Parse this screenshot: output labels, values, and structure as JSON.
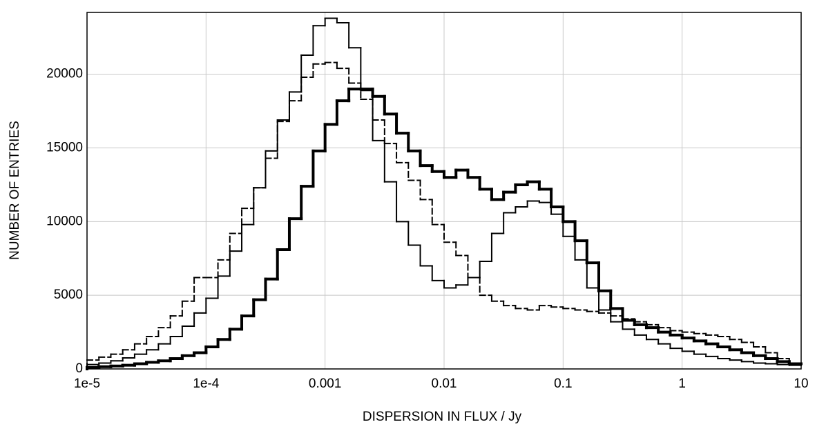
{
  "chart_data": {
    "type": "histogram",
    "xlabel": "DISPERSION IN FLUX / Jy",
    "ylabel": "NUMBER OF ENTRIES",
    "xscale": "log",
    "grid": true,
    "xlim": [
      1e-05,
      10
    ],
    "ylim": [
      0,
      24200
    ],
    "xticks": [
      {
        "value": 1e-05,
        "label": "1e-5"
      },
      {
        "value": 0.0001,
        "label": "1e-4"
      },
      0.001,
      0.01,
      0.1,
      1,
      10
    ],
    "yticks": [
      0,
      5000,
      10000,
      15000,
      20000
    ],
    "bins": [
      1e-05,
      1.259e-05,
      1.585e-05,
      1.995e-05,
      2.512e-05,
      3.162e-05,
      3.981e-05,
      5.012e-05,
      6.31e-05,
      7.943e-05,
      0.0001,
      0.0001259,
      0.0001585,
      0.0001995,
      0.0002512,
      0.0003162,
      0.0003981,
      0.0005012,
      0.000631,
      0.0007943,
      0.001,
      0.001259,
      0.001585,
      0.001995,
      0.002512,
      0.003162,
      0.003981,
      0.005012,
      0.00631,
      0.007943,
      0.01,
      0.01259,
      0.01585,
      0.01995,
      0.02512,
      0.03162,
      0.03981,
      0.05012,
      0.0631,
      0.07943,
      0.1,
      0.1259,
      0.1585,
      0.1995,
      0.2512,
      0.3162,
      0.3981,
      0.5012,
      0.631,
      0.7943,
      1,
      1.259,
      1.585,
      1.995,
      2.512,
      3.162,
      3.981,
      5.012,
      6.31,
      7.943,
      10
    ],
    "series": [
      {
        "color": "#000000",
        "width": 2,
        "dashed": false,
        "values": [
          300,
          400,
          550,
          750,
          1000,
          1300,
          1700,
          2200,
          2900,
          3800,
          4800,
          6300,
          8000,
          9800,
          12300,
          14800,
          16900,
          18800,
          21300,
          23300,
          23800,
          23500,
          21800,
          18900,
          15500,
          12700,
          10000,
          8400,
          7000,
          6000,
          5500,
          5700,
          6200,
          7300,
          9200,
          10600,
          11000,
          11400,
          11300,
          10500,
          9000,
          7400,
          5500,
          4000,
          3200,
          2700,
          2300,
          2000,
          1700,
          1400,
          1200,
          1000,
          850,
          700,
          600,
          500,
          400,
          350,
          300,
          250
        ]
      },
      {
        "color": "#000000",
        "width": 2,
        "dashed": true,
        "values": [
          600,
          800,
          1000,
          1300,
          1700,
          2200,
          2800,
          3600,
          4600,
          6200,
          6200,
          7400,
          9200,
          10900,
          12300,
          14300,
          16800,
          18200,
          19800,
          20700,
          20800,
          20400,
          19400,
          18300,
          16900,
          15300,
          14000,
          12800,
          11500,
          9800,
          8600,
          7700,
          6200,
          5000,
          4600,
          4300,
          4100,
          4000,
          4300,
          4200,
          4100,
          4000,
          3900,
          3800,
          3600,
          3400,
          3200,
          3000,
          2800,
          2600,
          2500,
          2400,
          2300,
          2200,
          2000,
          1800,
          1500,
          1100,
          700,
          400
        ]
      },
      {
        "color": "#000000",
        "width": 4,
        "dashed": false,
        "values": [
          100,
          150,
          200,
          250,
          350,
          450,
          550,
          700,
          900,
          1100,
          1500,
          2000,
          2700,
          3600,
          4700,
          6100,
          8100,
          10200,
          12400,
          14800,
          16600,
          18200,
          19000,
          19000,
          18500,
          17300,
          16000,
          14800,
          13800,
          13400,
          13000,
          13500,
          13000,
          12200,
          11500,
          12000,
          12500,
          12700,
          12200,
          11000,
          10000,
          8700,
          7200,
          5300,
          4100,
          3300,
          3000,
          2800,
          2500,
          2300,
          2100,
          1900,
          1700,
          1500,
          1300,
          1100,
          900,
          700,
          500,
          350
        ]
      }
    ]
  }
}
